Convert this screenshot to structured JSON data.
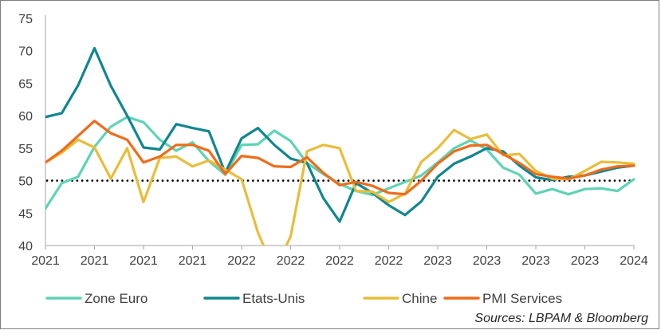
{
  "chart_data": {
    "type": "line",
    "title": "",
    "xlabel": "",
    "ylabel": "",
    "ylim": [
      40,
      75
    ],
    "yticks": [
      40,
      45,
      50,
      55,
      60,
      65,
      70,
      75
    ],
    "xtick_labels": [
      "2021",
      "2021",
      "2021",
      "2021",
      "2022",
      "2022",
      "2022",
      "2022",
      "2023",
      "2023",
      "2023",
      "2023",
      "2024"
    ],
    "reference_line": {
      "value": 50,
      "style": "dotted",
      "color": "#000000"
    },
    "x_points": 37,
    "series": [
      {
        "name": "Zone Euro",
        "color": "#5fd3b6",
        "values": [
          45.7,
          49.6,
          50.6,
          55.2,
          58.3,
          59.8,
          59.0,
          56.3,
          54.6,
          55.9,
          53.0,
          50.9,
          55.5,
          55.6,
          57.7,
          56.1,
          52.7,
          51.0,
          49.5,
          48.4,
          47.8,
          48.8,
          49.8,
          50.8,
          52.8,
          55.0,
          56.2,
          54.8,
          52.0,
          50.9,
          48.0,
          48.7,
          47.9,
          48.7,
          48.8,
          48.4,
          50.2
        ]
      },
      {
        "name": "Etats-Unis",
        "color": "#11868f",
        "values": [
          59.8,
          60.4,
          64.7,
          70.4,
          64.6,
          60.0,
          55.1,
          54.8,
          58.7,
          58.1,
          57.6,
          51.2,
          56.5,
          58.1,
          55.5,
          53.4,
          52.7,
          47.3,
          43.7,
          49.6,
          48.1,
          46.2,
          44.7,
          46.8,
          50.6,
          52.6,
          53.7,
          55.0,
          54.5,
          52.3,
          50.5,
          50.1,
          50.6,
          50.8,
          51.4,
          52.0,
          52.3
        ]
      },
      {
        "name": "Chine",
        "color": "#e8bd3a",
        "values": [
          52.8,
          54.3,
          56.3,
          55.1,
          50.3,
          55.0,
          46.7,
          53.5,
          53.7,
          52.2,
          53.1,
          51.7,
          50.2,
          42.0,
          36.2,
          41.4,
          54.5,
          55.5,
          55.0,
          48.4,
          48.3,
          46.7,
          48.0,
          52.9,
          55.0,
          57.8,
          56.4,
          57.1,
          53.9,
          54.1,
          51.5,
          50.3,
          50.2,
          51.5,
          52.9,
          52.8,
          52.6
        ]
      },
      {
        "name": "PMI Services",
        "color": "#ee6c1a",
        "values": [
          52.8,
          54.6,
          56.9,
          59.2,
          57.3,
          56.3,
          52.8,
          53.7,
          55.5,
          55.5,
          54.6,
          51.0,
          53.8,
          53.5,
          52.2,
          52.1,
          53.6,
          51.2,
          49.3,
          49.8,
          49.2,
          48.1,
          47.9,
          50.0,
          52.6,
          54.5,
          55.4,
          55.5,
          54.1,
          52.7,
          51.0,
          50.6,
          50.3,
          50.8,
          51.7,
          52.2,
          52.3
        ]
      }
    ],
    "legend": {
      "position": "bottom"
    },
    "source": "Sources: LBPAM & Bloomberg"
  }
}
